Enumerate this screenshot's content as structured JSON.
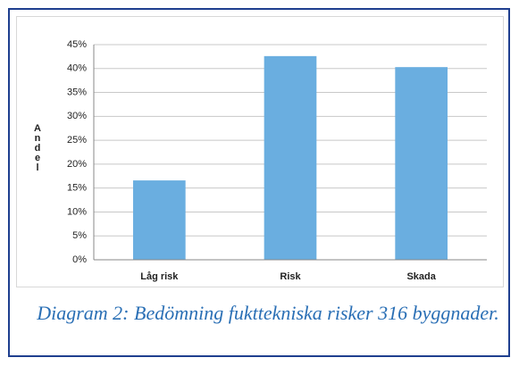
{
  "chart_data": {
    "type": "bar",
    "y_label": "Andel",
    "caption": "Diagram 2: Bedömning fukttekniska risker 316 byggnader.",
    "categories": [
      "Låg risk",
      "Risk",
      "Skada"
    ],
    "values": [
      16.6,
      42.6,
      40.3
    ],
    "color": "#6aaee0",
    "ylim": [
      0,
      45
    ],
    "yticks": [
      {
        "value": 0,
        "label": "0%"
      },
      {
        "value": 5,
        "label": "5%"
      },
      {
        "value": 10,
        "label": "10%"
      },
      {
        "value": 15,
        "label": "15%"
      },
      {
        "value": 20,
        "label": "20%"
      },
      {
        "value": 25,
        "label": "25%"
      },
      {
        "value": 30,
        "label": "30%"
      },
      {
        "value": 35,
        "label": "35%"
      },
      {
        "value": 40,
        "label": "40%"
      },
      {
        "value": 45,
        "label": "45%"
      }
    ],
    "grid": true
  }
}
